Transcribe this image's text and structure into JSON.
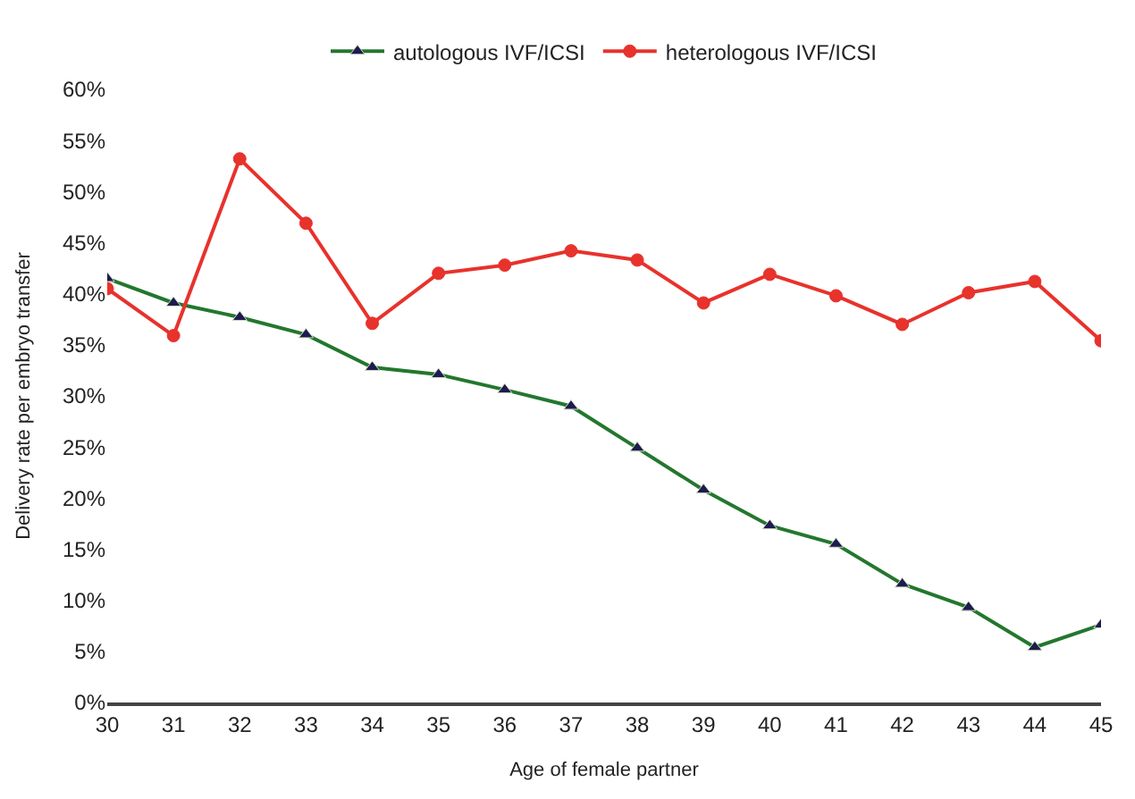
{
  "chart_data": {
    "type": "line",
    "xlabel": "Age of female partner",
    "ylabel": "Delivery rate per embryo transfer",
    "x": [
      30,
      31,
      32,
      33,
      34,
      35,
      36,
      37,
      38,
      39,
      40,
      41,
      42,
      43,
      44,
      45
    ],
    "series": [
      {
        "name": "autologous IVF/ICSI",
        "color": "#23772e",
        "marker": "triangle",
        "values": [
          41.5,
          39.1,
          37.7,
          36.0,
          32.8,
          32.1,
          30.6,
          29.0,
          24.9,
          20.8,
          17.3,
          15.5,
          11.6,
          9.3,
          5.4,
          7.6
        ]
      },
      {
        "name": "heterologous IVF/ICSI",
        "color": "#e8322c",
        "marker": "circle",
        "values": [
          40.5,
          35.9,
          53.2,
          46.9,
          37.1,
          42.0,
          42.8,
          44.2,
          43.3,
          39.1,
          41.9,
          39.8,
          37.0,
          40.1,
          41.2,
          35.4
        ]
      }
    ],
    "xlim": [
      30,
      45
    ],
    "xticks": [
      30,
      31,
      32,
      33,
      34,
      35,
      36,
      37,
      38,
      39,
      40,
      41,
      42,
      43,
      44,
      45
    ],
    "ylim": [
      0,
      60
    ],
    "yticks": [
      {
        "value": 0,
        "label": "0%"
      },
      {
        "value": 5,
        "label": "5%"
      },
      {
        "value": 10,
        "label": "10%"
      },
      {
        "value": 15,
        "label": "15%"
      },
      {
        "value": 20,
        "label": "20%"
      },
      {
        "value": 25,
        "label": "25%"
      },
      {
        "value": 30,
        "label": "30%"
      },
      {
        "value": 35,
        "label": "35%"
      },
      {
        "value": 40,
        "label": "40%"
      },
      {
        "value": 45,
        "label": "45%"
      },
      {
        "value": 50,
        "label": "50%"
      },
      {
        "value": 55,
        "label": "55%"
      },
      {
        "value": 60,
        "label": "60%"
      }
    ],
    "legend": "top",
    "line_style": "solid"
  }
}
